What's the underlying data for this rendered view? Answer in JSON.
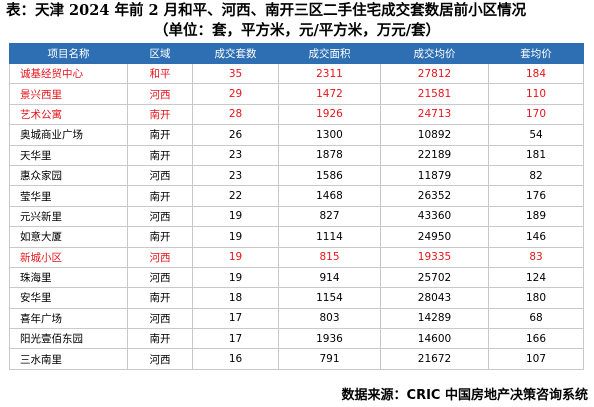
{
  "title": "表：天津 2024 年前 2 月和平、河西、南开三区二手住宅成交套数居前小区情况",
  "subtitle": "（单位：套，平方米，元/平方米，万元/套）",
  "table": {
    "headers": [
      "项目名称",
      "区域",
      "成交套数",
      "成交面积",
      "成交均价",
      "套均价"
    ],
    "rows": [
      {
        "cells": [
          "诚基经贸中心",
          "和平",
          "35",
          "2311",
          "27812",
          "184"
        ],
        "highlight": true
      },
      {
        "cells": [
          "景兴西里",
          "河西",
          "29",
          "1472",
          "21581",
          "110"
        ],
        "highlight": true
      },
      {
        "cells": [
          "艺术公寓",
          "南开",
          "28",
          "1926",
          "24713",
          "170"
        ],
        "highlight": true
      },
      {
        "cells": [
          "奥城商业广场",
          "南开",
          "26",
          "1300",
          "10892",
          "54"
        ],
        "highlight": false
      },
      {
        "cells": [
          "天华里",
          "南开",
          "23",
          "1878",
          "22189",
          "181"
        ],
        "highlight": false
      },
      {
        "cells": [
          "惠众家园",
          "河西",
          "23",
          "1586",
          "11879",
          "82"
        ],
        "highlight": false
      },
      {
        "cells": [
          "莹华里",
          "南开",
          "22",
          "1468",
          "26352",
          "176"
        ],
        "highlight": false
      },
      {
        "cells": [
          "元兴新里",
          "河西",
          "19",
          "827",
          "43360",
          "189"
        ],
        "highlight": false
      },
      {
        "cells": [
          "如意大厦",
          "南开",
          "19",
          "1114",
          "24950",
          "146"
        ],
        "highlight": false
      },
      {
        "cells": [
          "新城小区",
          "河西",
          "19",
          "815",
          "19335",
          "83"
        ],
        "highlight": true
      },
      {
        "cells": [
          "珠海里",
          "河西",
          "19",
          "914",
          "25702",
          "124"
        ],
        "highlight": false
      },
      {
        "cells": [
          "安华里",
          "南开",
          "18",
          "1154",
          "28043",
          "180"
        ],
        "highlight": false
      },
      {
        "cells": [
          "喜年广场",
          "河西",
          "17",
          "803",
          "14289",
          "68"
        ],
        "highlight": false
      },
      {
        "cells": [
          "阳光壹佰东园",
          "南开",
          "17",
          "1936",
          "14600",
          "166"
        ],
        "highlight": false
      },
      {
        "cells": [
          "三水南里",
          "河西",
          "16",
          "791",
          "21672",
          "107"
        ],
        "highlight": false
      }
    ]
  },
  "source": "数据来源：CRIC 中国房地产决策咨询系统",
  "colors": {
    "header_bg": "#2e6fb4",
    "highlight_text": "#e8141b"
  }
}
